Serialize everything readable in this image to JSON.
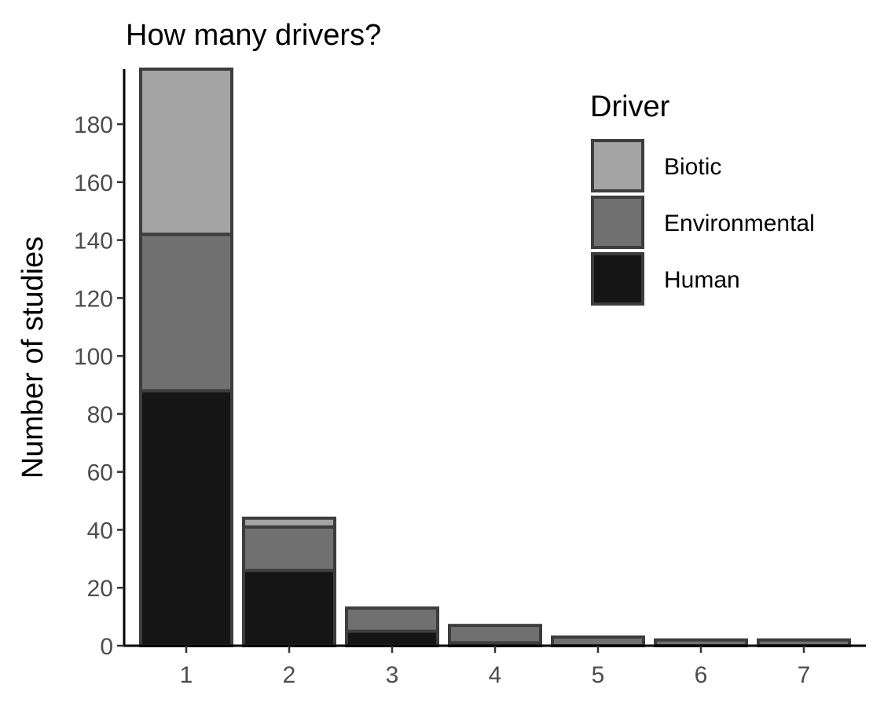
{
  "chart_data": {
    "type": "bar",
    "stacked": true,
    "title": "How many drivers?",
    "xlabel": "",
    "ylabel": "Number of studies",
    "categories": [
      "1",
      "2",
      "3",
      "4",
      "5",
      "6",
      "7"
    ],
    "series": [
      {
        "name": "Human",
        "color": "#151515",
        "values": [
          88,
          26,
          5,
          1,
          0,
          0,
          0
        ]
      },
      {
        "name": "Environmental",
        "color": "#707070",
        "values": [
          54,
          15,
          8,
          6,
          3,
          2,
          2
        ]
      },
      {
        "name": "Biotic",
        "color": "#a4a4a4",
        "values": [
          57,
          3,
          0,
          0,
          0,
          0,
          0
        ]
      }
    ],
    "y_ticks": [
      "0",
      "20",
      "40",
      "60",
      "80",
      "100",
      "120",
      "140",
      "160",
      "180"
    ],
    "ylim": [
      0,
      199
    ],
    "grid": false,
    "legend": {
      "title": "Driver",
      "placement": "top-right",
      "order": [
        "Biotic",
        "Environmental",
        "Human"
      ]
    },
    "bar_outline_color": "#3d3d3d"
  }
}
